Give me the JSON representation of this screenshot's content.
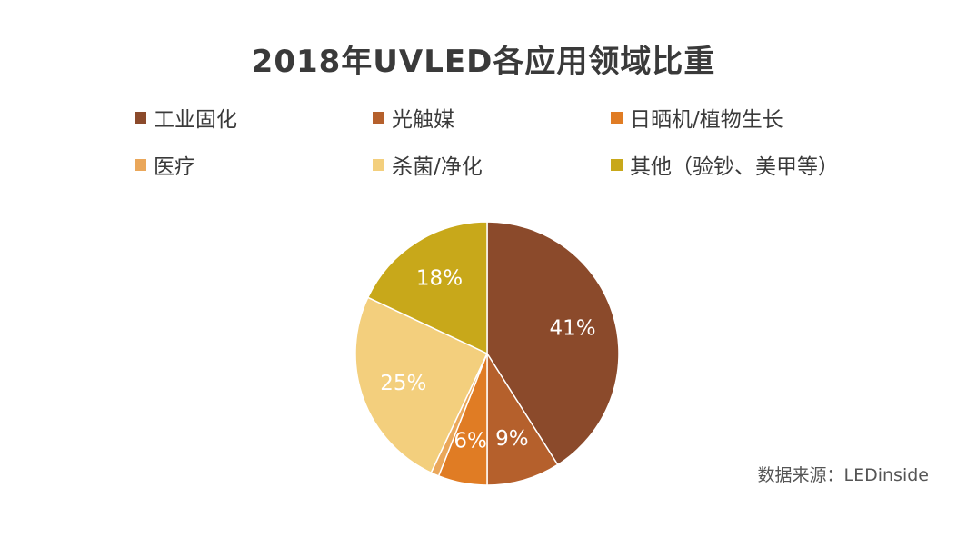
{
  "chart_data": {
    "type": "pie",
    "title": "2018年UVLED各应用领域比重",
    "categories": [
      "工业固化",
      "光触媒",
      "日晒机/植物生长",
      "医疗",
      "杀菌/净化",
      "其他（验钞、美甲等）"
    ],
    "values": [
      41,
      9,
      6,
      1,
      25,
      18
    ],
    "data_labels": [
      "41%",
      "9%",
      "6%",
      "",
      "25%",
      "18%"
    ],
    "colors": [
      "#8b4a2b",
      "#b5602c",
      "#e07c24",
      "#eaa75a",
      "#f3cf7d",
      "#c8a81a"
    ],
    "legend_position": "top"
  },
  "legend_labels": [
    "工业固化",
    "光触媒",
    "日晒机/植物生长",
    "医疗",
    "杀菌/净化",
    "其他（验钞、美甲等）"
  ],
  "source": "数据来源：LEDinside"
}
